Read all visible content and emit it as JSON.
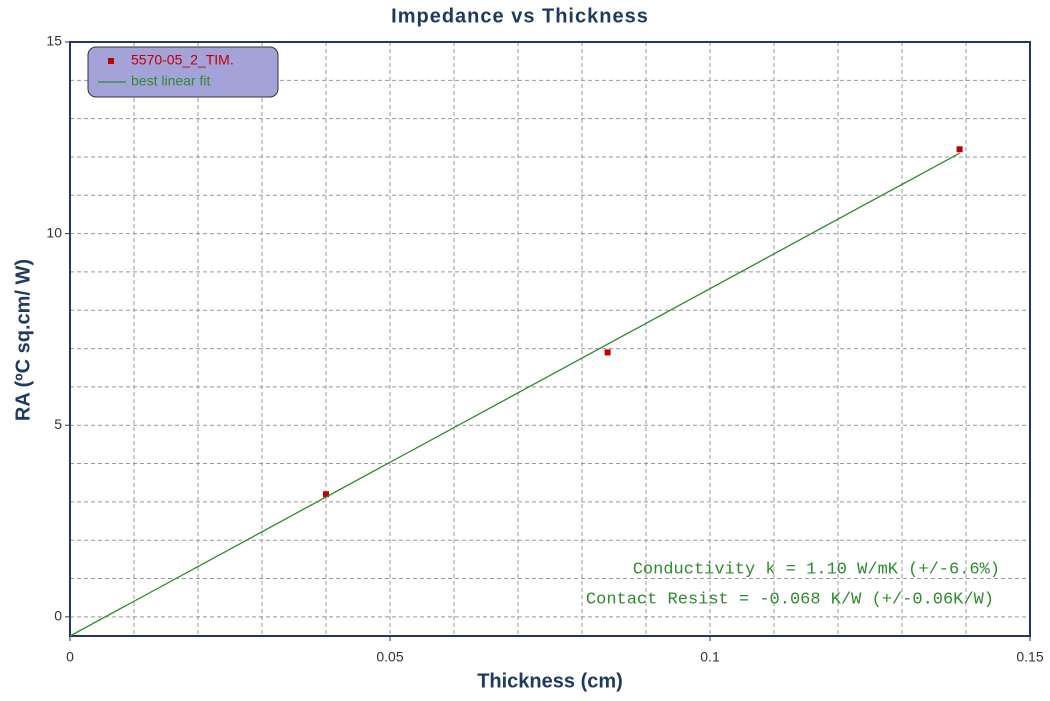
{
  "chart_data": {
    "type": "scatter",
    "title": "Impedance vs Thickness",
    "x_label": "Thickness (cm)",
    "y_label": "RA (ºC sq.cm/ W)",
    "xlim": [
      0,
      0.15
    ],
    "ylim": [
      -0.5,
      15
    ],
    "xticks": [
      0,
      0.05,
      0.1,
      0.15
    ],
    "yticks": [
      0,
      5,
      10,
      15
    ],
    "xminor": [
      0.01,
      0.02,
      0.03,
      0.04,
      0.06,
      0.07,
      0.08,
      0.09,
      0.11,
      0.12,
      0.13,
      0.14
    ],
    "yminor": [
      1,
      2,
      3,
      4,
      6,
      7,
      8,
      9,
      11,
      12,
      13,
      14
    ],
    "grid": true,
    "legend": "top-left",
    "series": [
      {
        "name": "5570-05_2_TIM.",
        "color": "#c00000",
        "mode": "markers",
        "x": [
          0.04,
          0.084,
          0.139
        ],
        "values": [
          3.2,
          6.9,
          12.2
        ]
      },
      {
        "name": "best linear fit",
        "color": "#2e8b2e",
        "mode": "line",
        "x": [
          0,
          0.139
        ],
        "values": [
          -0.5,
          12.1
        ]
      }
    ],
    "annotations": [
      "Conductivity k = 1.10 W/mK (+/-6.6%)",
      "Contact Resist = -0.068 K/W (+/-0.06K/W)"
    ]
  }
}
